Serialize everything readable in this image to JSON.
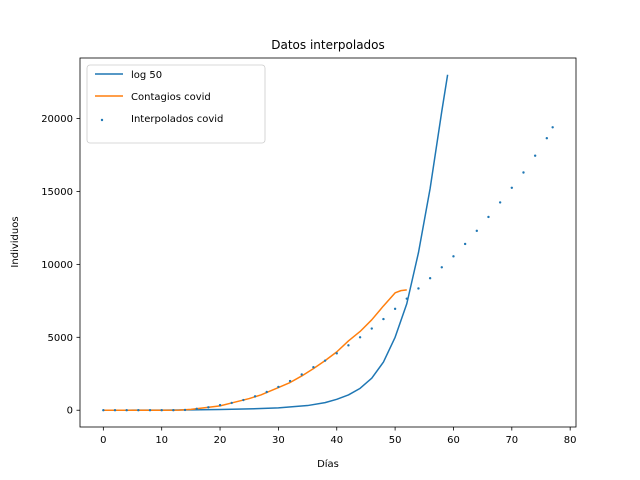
{
  "chart_data": {
    "type": "line",
    "title": "Datos interpolados",
    "xlabel": "Días",
    "ylabel": "Individuos",
    "xlim": [
      -4,
      81
    ],
    "ylim": [
      -1150,
      24150
    ],
    "xticks": [
      0,
      10,
      20,
      30,
      40,
      50,
      60,
      70,
      80
    ],
    "yticks": [
      0,
      5000,
      10000,
      15000,
      20000
    ],
    "grid": false,
    "legend_position": "top-left",
    "series": [
      {
        "name": "log 50",
        "kind": "line",
        "color": "#1f77b4",
        "x": [
          0,
          5,
          10,
          15,
          20,
          25,
          30,
          35,
          38,
          40,
          42,
          44,
          46,
          48,
          50,
          52,
          54,
          56,
          58,
          59
        ],
        "y": [
          0,
          3,
          10,
          25,
          50,
          90,
          160,
          320,
          520,
          750,
          1050,
          1500,
          2200,
          3300,
          5000,
          7300,
          10800,
          15200,
          20500,
          23000
        ]
      },
      {
        "name": "Contagios covid",
        "kind": "line",
        "color": "#ff7f0e",
        "x": [
          0,
          5,
          10,
          13,
          15,
          17,
          20,
          22,
          25,
          27,
          30,
          32,
          34,
          36,
          38,
          40,
          42,
          44,
          46,
          48,
          50,
          51,
          52
        ],
        "y": [
          0,
          0,
          0,
          5,
          60,
          150,
          300,
          500,
          800,
          1050,
          1550,
          1900,
          2350,
          2850,
          3400,
          4000,
          4750,
          5400,
          6200,
          7150,
          8050,
          8200,
          8250
        ]
      },
      {
        "name": "Interpolados covid",
        "kind": "scatter",
        "color": "#1f77b4",
        "x": [
          0,
          2,
          4,
          6,
          8,
          10,
          12,
          14,
          16,
          18,
          20,
          22,
          24,
          26,
          28,
          30,
          32,
          34,
          36,
          38,
          40,
          42,
          44,
          46,
          48,
          50,
          52,
          54,
          56,
          58,
          60,
          62,
          64,
          66,
          68,
          70,
          72,
          74,
          76,
          77
        ],
        "y": [
          0,
          0,
          0,
          0,
          0,
          0,
          0,
          20,
          100,
          200,
          350,
          500,
          700,
          950,
          1250,
          1600,
          2000,
          2450,
          2950,
          3400,
          3900,
          4450,
          5000,
          5600,
          6250,
          6950,
          7650,
          8350,
          9050,
          9800,
          10550,
          11400,
          12300,
          13250,
          14250,
          15250,
          16300,
          17450,
          18650,
          19400
        ]
      }
    ]
  }
}
